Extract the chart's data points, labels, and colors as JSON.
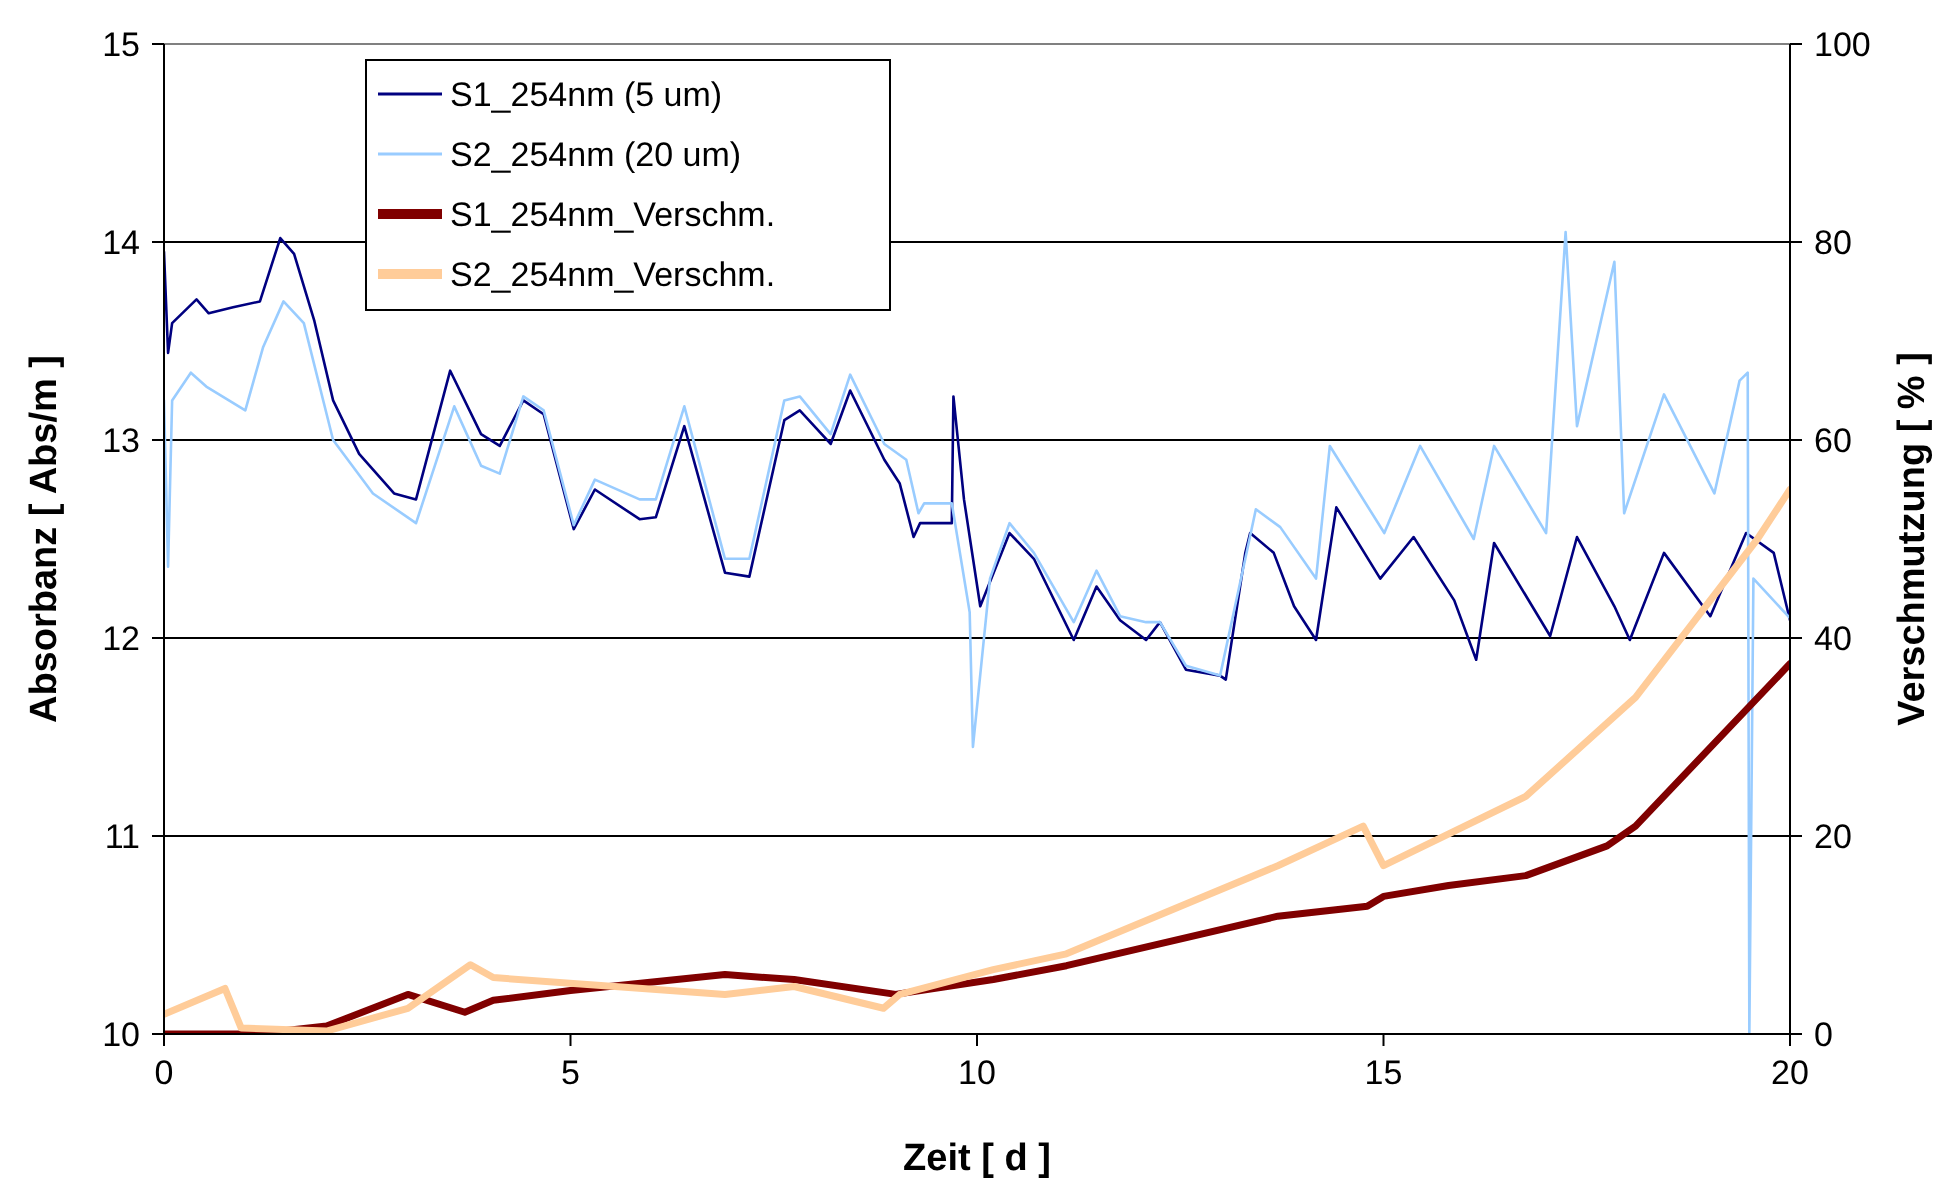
{
  "chart_data": {
    "type": "line",
    "xlabel": "Zeit [ d ]",
    "ylabel": "Absorbanz [ Abs/m ]",
    "y2label": "Verschmutzung [ % ]",
    "xlim": [
      0,
      20
    ],
    "xticks": [
      0,
      5,
      10,
      15,
      20
    ],
    "ylim": [
      10,
      15
    ],
    "yticks": [
      10,
      11,
      12,
      13,
      14,
      15
    ],
    "y2lim": [
      0,
      100
    ],
    "y2ticks": [
      0,
      20,
      40,
      60,
      80,
      100
    ],
    "grid": "y",
    "legend": "top left",
    "line_style": "solid",
    "marker": "none",
    "series": [
      {
        "name": "S1_254nm (5 um)",
        "color": "#000080",
        "x": [
          0,
          0.05,
          0.1,
          0.4,
          0.55,
          0.85,
          1.18,
          1.43,
          1.6,
          1.85,
          2.08,
          2.4,
          2.83,
          3.1,
          3.52,
          3.9,
          4.13,
          4.42,
          4.67,
          5.04,
          5.3,
          5.85,
          6.05,
          6.4,
          6.9,
          7.2,
          7.63,
          7.82,
          8.2,
          8.44,
          8.86,
          9.05,
          9.22,
          9.3,
          9.69,
          9.71,
          9.84,
          10.04,
          10.4,
          10.7,
          11.19,
          11.47,
          11.76,
          12.08,
          12.25,
          12.57,
          12.99,
          13.06,
          13.3,
          13.36,
          13.65,
          13.9,
          14.17,
          14.42,
          14.96,
          15.37,
          15.87,
          16.14,
          16.36,
          17.05,
          17.38,
          17.84,
          18.03,
          18.45,
          19.02,
          19.46,
          19.8,
          20
        ],
        "values": [
          13.95,
          13.44,
          13.59,
          13.71,
          13.64,
          13.67,
          13.7,
          14.02,
          13.94,
          13.6,
          13.2,
          12.93,
          12.73,
          12.7,
          13.35,
          13.03,
          12.97,
          13.2,
          13.13,
          12.55,
          12.75,
          12.6,
          12.61,
          13.07,
          12.33,
          12.31,
          13.1,
          13.15,
          12.98,
          13.25,
          12.9,
          12.78,
          12.51,
          12.58,
          12.58,
          13.22,
          12.7,
          12.16,
          12.53,
          12.4,
          11.99,
          12.26,
          12.09,
          11.99,
          12.08,
          11.84,
          11.81,
          11.79,
          12.43,
          12.53,
          12.43,
          12.16,
          11.99,
          12.66,
          12.3,
          12.51,
          12.19,
          11.89,
          12.48,
          12.01,
          12.51,
          12.16,
          11.99,
          12.43,
          12.11,
          12.53,
          12.43,
          12.09
        ]
      },
      {
        "name": "S2_254nm (20 um)",
        "color": "#99ccff",
        "x": [
          0,
          0.05,
          0.1,
          0.33,
          0.52,
          1.0,
          1.22,
          1.47,
          1.72,
          2.08,
          2.57,
          3.1,
          3.57,
          3.9,
          4.13,
          4.42,
          4.67,
          5.04,
          5.3,
          5.85,
          6.05,
          6.4,
          6.9,
          7.2,
          7.63,
          7.82,
          8.2,
          8.44,
          8.86,
          9.13,
          9.28,
          9.35,
          9.69,
          9.91,
          9.95,
          10.16,
          10.4,
          10.7,
          11.19,
          11.47,
          11.76,
          12.08,
          12.25,
          12.57,
          12.99,
          13.3,
          13.43,
          13.73,
          14.17,
          14.34,
          15.01,
          15.45,
          16.11,
          16.36,
          17.0,
          17.24,
          17.38,
          17.84,
          17.96,
          18.45,
          19.07,
          19.38,
          19.48,
          19.5,
          19.55,
          20
        ],
        "values": [
          13.2,
          12.36,
          13.2,
          13.34,
          13.27,
          13.15,
          13.47,
          13.7,
          13.59,
          13.0,
          12.73,
          12.58,
          13.17,
          12.87,
          12.83,
          13.22,
          13.15,
          12.57,
          12.8,
          12.7,
          12.7,
          13.17,
          12.4,
          12.4,
          13.2,
          13.22,
          13.03,
          13.33,
          12.98,
          12.9,
          12.63,
          12.68,
          12.68,
          12.13,
          11.45,
          12.3,
          12.58,
          12.43,
          12.08,
          12.34,
          12.11,
          12.08,
          12.08,
          11.86,
          11.81,
          12.4,
          12.65,
          12.56,
          12.3,
          12.97,
          12.53,
          12.97,
          12.5,
          12.97,
          12.53,
          14.05,
          13.07,
          13.9,
          12.63,
          13.23,
          12.73,
          13.3,
          13.34,
          10,
          12.3,
          12.1
        ]
      },
      {
        "name": "S1_254nm_Verschm.",
        "color": "#800000",
        "axis": "y2",
        "x": [
          0,
          1.1,
          2.0,
          3.0,
          3.7,
          4.05,
          5.0,
          6.9,
          7.75,
          9.0,
          10.2,
          11.1,
          13.7,
          14.8,
          15.0,
          15.8,
          16.75,
          17.75,
          18.1,
          20.0
        ],
        "values": [
          0,
          0,
          0.8,
          4,
          2.2,
          3.4,
          4.4,
          6,
          5.5,
          4,
          5.5,
          6.9,
          11.9,
          12.9,
          13.9,
          15,
          16,
          19,
          21,
          37.4
        ]
      },
      {
        "name": "S2_254nm_Verschm.",
        "color": "#ffcc99",
        "axis": "y2",
        "x": [
          0,
          0.75,
          0.95,
          2.0,
          3.0,
          3.77,
          4.05,
          6.9,
          7.75,
          8.85,
          9.05,
          10.2,
          11.1,
          13.7,
          14.75,
          15.0,
          16.75,
          18.1,
          19.6,
          20.0
        ],
        "values": [
          2,
          4.6,
          0.6,
          0.3,
          2.6,
          7,
          5.7,
          4,
          4.8,
          2.6,
          4,
          6.5,
          8.1,
          17,
          21,
          17,
          24,
          34,
          50,
          55
        ]
      }
    ]
  }
}
